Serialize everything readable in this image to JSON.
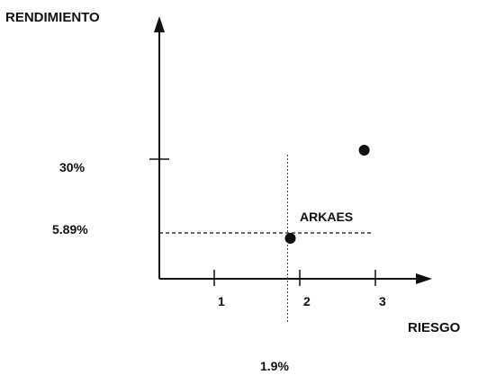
{
  "chart_data": {
    "type": "scatter",
    "title": "",
    "xlabel": "RIESGO",
    "ylabel": "RENDIMIENTO",
    "x_ticks": [
      "1",
      "2",
      "3"
    ],
    "y_ticks": [
      "5.89%",
      "30%"
    ],
    "points": [
      {
        "x": 1.9,
        "y": 5.89,
        "label": "ARKAES"
      },
      {
        "x": 2.9,
        "y": 33
      }
    ],
    "reference_lines": {
      "vertical": {
        "x": 1.9,
        "label": "1.9%"
      },
      "horizontal": {
        "y": 5.89,
        "label": "5.89%"
      }
    },
    "xlim": [
      0,
      3.6
    ],
    "ylim": [
      0,
      50
    ],
    "colors": {
      "ink": "#111111"
    }
  }
}
